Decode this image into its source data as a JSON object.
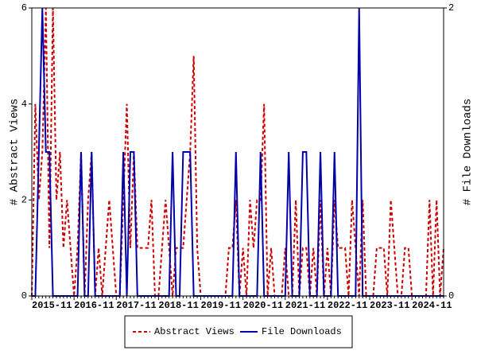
{
  "chart_data": {
    "type": "line",
    "categories": [
      "2015-11",
      null,
      null,
      null,
      null,
      null,
      null,
      null,
      null,
      null,
      null,
      null,
      "2016-11",
      null,
      null,
      null,
      null,
      null,
      null,
      null,
      null,
      null,
      null,
      null,
      "2017-11",
      null,
      null,
      null,
      null,
      null,
      null,
      null,
      null,
      null,
      null,
      null,
      "2018-11",
      null,
      null,
      null,
      null,
      null,
      null,
      null,
      null,
      null,
      null,
      null,
      "2019-11",
      null,
      null,
      null,
      null,
      null,
      null,
      null,
      null,
      null,
      null,
      null,
      "2020-11",
      null,
      null,
      null,
      null,
      null,
      null,
      null,
      null,
      null,
      null,
      null,
      "2021-11",
      null,
      null,
      null,
      null,
      null,
      null,
      null,
      null,
      null,
      null,
      null,
      "2022-11",
      null,
      null,
      null,
      null,
      null,
      null,
      null,
      null,
      null,
      null,
      null,
      "2023-11",
      null,
      null,
      null,
      null,
      null,
      null,
      null,
      null,
      null,
      null,
      null,
      "2024-11",
      null,
      null,
      null,
      null,
      null,
      null,
      null,
      null,
      null
    ],
    "series": [
      {
        "name": "Abstract Views",
        "color": "#cc0000",
        "dash": true,
        "values": [
          0,
          4,
          2,
          3,
          6,
          1,
          6,
          2,
          3,
          1,
          2,
          1,
          0,
          1,
          3,
          0,
          2,
          3,
          0,
          1,
          0,
          1,
          2,
          1,
          0,
          0,
          2,
          4,
          1,
          3,
          1,
          1,
          1,
          1,
          2,
          0,
          0,
          1,
          2,
          1,
          0,
          1,
          1,
          1,
          2,
          3,
          5,
          1,
          0,
          0,
          0,
          0,
          0,
          0,
          0,
          0,
          1,
          1,
          2,
          0,
          1,
          0,
          2,
          1,
          2,
          2,
          4,
          0,
          1,
          0,
          0,
          0,
          1,
          0,
          0,
          2,
          0,
          1,
          1,
          0,
          1,
          0,
          2,
          0,
          1,
          0,
          2,
          1,
          1,
          1,
          0,
          2,
          1,
          0,
          2,
          0,
          0,
          0,
          1,
          1,
          1,
          0,
          2,
          1,
          0,
          0,
          1,
          1,
          0,
          0,
          0,
          0,
          0,
          2,
          0,
          2,
          0,
          1
        ]
      },
      {
        "name": "File Downloads",
        "color": "#0000aa",
        "axis": "y2",
        "values": [
          0,
          0,
          1,
          2,
          1,
          1,
          0,
          0,
          0,
          0,
          0,
          0,
          0,
          0,
          1,
          0,
          0,
          1,
          0,
          0,
          0,
          0,
          0,
          0,
          0,
          0,
          1,
          0,
          1,
          1,
          0,
          0,
          0,
          0,
          0,
          0,
          0,
          0,
          0,
          0,
          1,
          0,
          0,
          1,
          1,
          1,
          0,
          0,
          0,
          0,
          0,
          0,
          0,
          0,
          0,
          0,
          0,
          0,
          1,
          0,
          0,
          0,
          0,
          0,
          0,
          1,
          0,
          0,
          0,
          0,
          0,
          0,
          0,
          1,
          0,
          0,
          0,
          1,
          1,
          0,
          0,
          0,
          1,
          0,
          0,
          0,
          1,
          0,
          0,
          0,
          0,
          0,
          0,
          2,
          0,
          0,
          0,
          0,
          0,
          0,
          0,
          0,
          0,
          0,
          0,
          0,
          0,
          0,
          0,
          0,
          0,
          0,
          0,
          0,
          0,
          0,
          0,
          0
        ]
      }
    ],
    "ylabel": "# Abstract Views",
    "y2label": "# File Downloads",
    "ylim": [
      0,
      6
    ],
    "yticks": [
      0,
      2,
      4,
      6
    ],
    "y2lim": [
      0,
      2
    ],
    "y2ticks": [
      0,
      2
    ],
    "legend": "bottom"
  }
}
